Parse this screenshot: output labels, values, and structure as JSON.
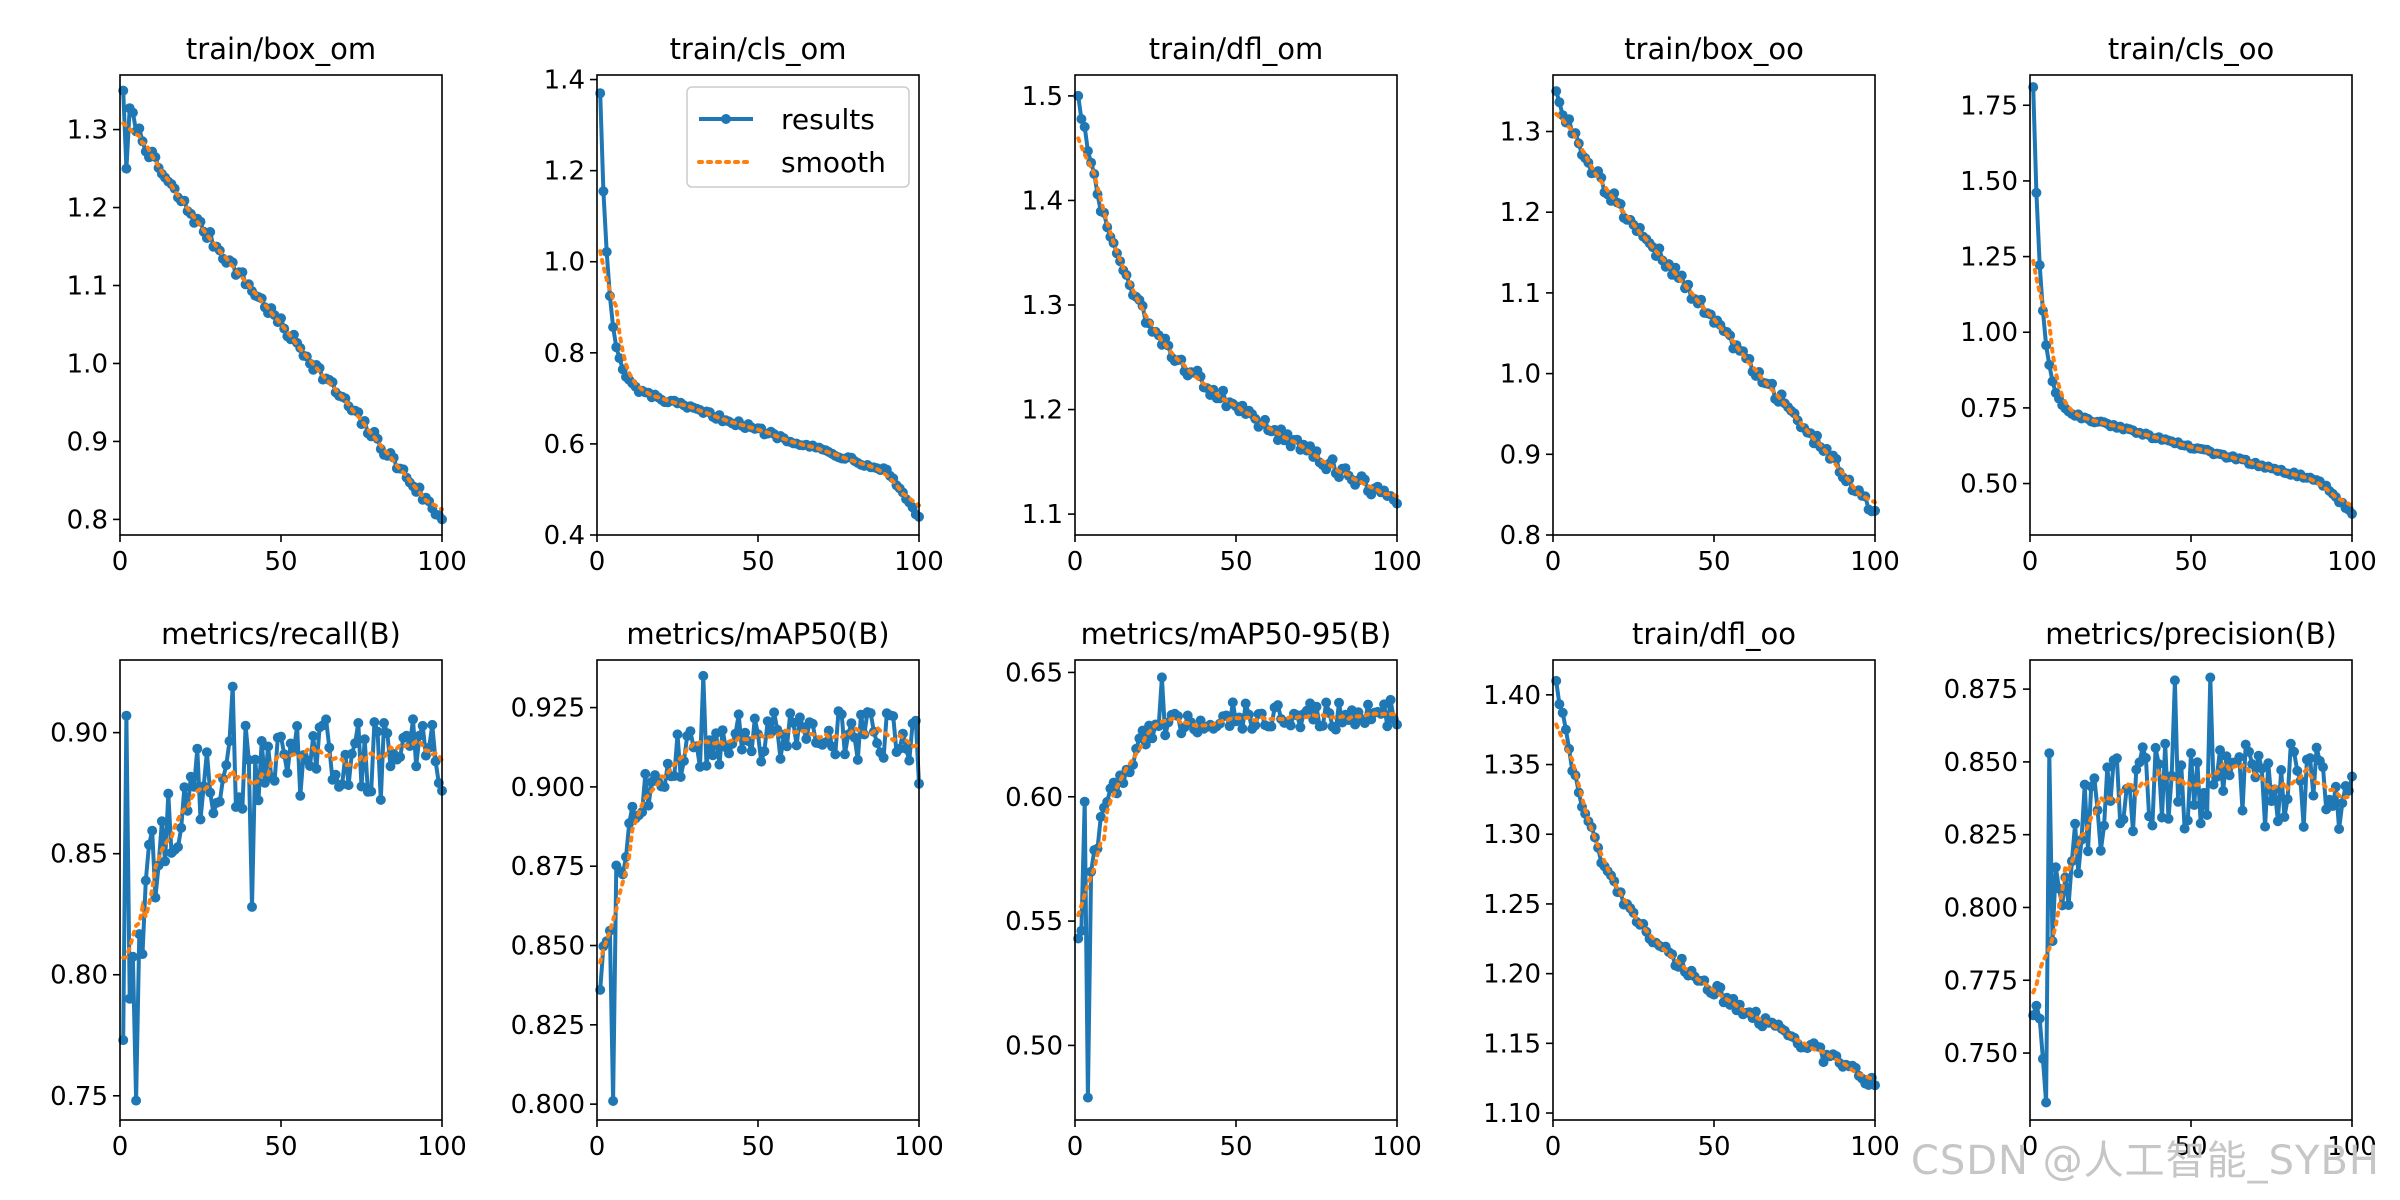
{
  "watermark": "CSDN @人工智能_SYBH",
  "legend": {
    "results": "results",
    "smooth": "smooth"
  },
  "colors": {
    "results": "#1f77b4",
    "smooth": "#ff7f0e",
    "axis": "#000000",
    "background": "#ffffff"
  },
  "chart_data": [
    {
      "type": "line",
      "title": "train/box_om",
      "xlim": [
        0,
        100
      ],
      "ylim": [
        0.78,
        1.37
      ],
      "xticks": [
        0,
        50,
        100
      ],
      "xtick_labels": [
        "0",
        "50",
        "100"
      ],
      "yticks": [
        0.8,
        0.9,
        1.0,
        1.1,
        1.2,
        1.3
      ],
      "ytick_labels": [
        "0.8",
        "0.9",
        "1.0",
        "1.1",
        "1.2",
        "1.3"
      ],
      "x_start": 1,
      "x_end": 100,
      "y_start": 1.35,
      "y_end": 0.8,
      "curve": "linear",
      "noise": 0.008,
      "spikes": [
        [
          2,
          1.25
        ]
      ],
      "legend": false
    },
    {
      "type": "line",
      "title": "train/cls_om",
      "xlim": [
        0,
        100
      ],
      "ylim": [
        0.4,
        1.41
      ],
      "xticks": [
        0,
        50,
        100
      ],
      "xtick_labels": [
        "0",
        "50",
        "100"
      ],
      "yticks": [
        0.4,
        0.6,
        0.8,
        1.0,
        1.2,
        1.4
      ],
      "ytick_labels": [
        "0.4",
        "0.6",
        "0.8",
        "1.0",
        "1.2",
        "1.4"
      ],
      "x_start": 1,
      "x_end": 100,
      "y_start": 1.37,
      "y_end": 0.44,
      "curve": "fastdecay",
      "plateau": 0.74,
      "noise": 0.006,
      "spikes": [],
      "legend": true
    },
    {
      "type": "line",
      "title": "train/dfl_om",
      "xlim": [
        0,
        100
      ],
      "ylim": [
        1.08,
        1.52
      ],
      "xticks": [
        0,
        50,
        100
      ],
      "xtick_labels": [
        "0",
        "50",
        "100"
      ],
      "yticks": [
        1.1,
        1.2,
        1.3,
        1.4,
        1.5
      ],
      "ytick_labels": [
        "1.1",
        "1.2",
        "1.3",
        "1.4",
        "1.5"
      ],
      "x_start": 1,
      "x_end": 100,
      "y_start": 1.5,
      "y_end": 1.11,
      "curve": "decay",
      "noise": 0.007,
      "spikes": [],
      "legend": false
    },
    {
      "type": "line",
      "title": "train/box_oo",
      "xlim": [
        0,
        100
      ],
      "ylim": [
        0.8,
        1.37
      ],
      "xticks": [
        0,
        50,
        100
      ],
      "xtick_labels": [
        "0",
        "50",
        "100"
      ],
      "yticks": [
        0.8,
        0.9,
        1.0,
        1.1,
        1.2,
        1.3
      ],
      "ytick_labels": [
        "0.8",
        "0.9",
        "1.0",
        "1.1",
        "1.2",
        "1.3"
      ],
      "x_start": 1,
      "x_end": 100,
      "y_start": 1.35,
      "y_end": 0.83,
      "curve": "linear",
      "noise": 0.008,
      "spikes": [],
      "legend": false
    },
    {
      "type": "line",
      "title": "train/cls_oo",
      "xlim": [
        0,
        100
      ],
      "ylim": [
        0.33,
        1.85
      ],
      "xticks": [
        0,
        50,
        100
      ],
      "xtick_labels": [
        "0",
        "50",
        "100"
      ],
      "yticks": [
        0.5,
        0.75,
        1.0,
        1.25,
        1.5,
        1.75
      ],
      "ytick_labels": [
        "0.50",
        "0.75",
        "1.00",
        "1.25",
        "1.50",
        "1.75"
      ],
      "x_start": 1,
      "x_end": 100,
      "y_start": 1.81,
      "y_end": 0.4,
      "curve": "fastdecay",
      "plateau": 0.76,
      "noise": 0.006,
      "spikes": [],
      "legend": false
    },
    {
      "type": "line",
      "title": "metrics/recall(B)",
      "xlim": [
        0,
        100
      ],
      "ylim": [
        0.74,
        0.93
      ],
      "xticks": [
        0,
        50,
        100
      ],
      "xtick_labels": [
        "0",
        "50",
        "100"
      ],
      "yticks": [
        0.75,
        0.8,
        0.85,
        0.9
      ],
      "ytick_labels": [
        "0.75",
        "0.80",
        "0.85",
        "0.90"
      ],
      "x_start": 1,
      "x_end": 100,
      "y_start": 0.773,
      "y_end": 0.876,
      "curve": "rise",
      "plateau": 0.888,
      "noise": 0.018,
      "spikes": [
        [
          2,
          0.907
        ],
        [
          5,
          0.748
        ],
        [
          35,
          0.919
        ],
        [
          41,
          0.828
        ]
      ],
      "legend": false
    },
    {
      "type": "line",
      "title": "metrics/mAP50(B)",
      "xlim": [
        0,
        100
      ],
      "ylim": [
        0.795,
        0.94
      ],
      "xticks": [
        0,
        50,
        100
      ],
      "xtick_labels": [
        "0",
        "50",
        "100"
      ],
      "yticks": [
        0.8,
        0.825,
        0.85,
        0.875,
        0.9,
        0.925
      ],
      "ytick_labels": [
        "0.800",
        "0.825",
        "0.850",
        "0.875",
        "0.900",
        "0.925"
      ],
      "x_start": 1,
      "x_end": 100,
      "y_start": 0.836,
      "y_end": 0.901,
      "curve": "rise",
      "plateau": 0.916,
      "noise": 0.008,
      "spikes": [
        [
          5,
          0.801
        ],
        [
          33,
          0.935
        ]
      ],
      "legend": false
    },
    {
      "type": "line",
      "title": "metrics/mAP50-95(B)",
      "xlim": [
        0,
        100
      ],
      "ylim": [
        0.47,
        0.655
      ],
      "xticks": [
        0,
        50,
        100
      ],
      "xtick_labels": [
        "0",
        "50",
        "100"
      ],
      "yticks": [
        0.5,
        0.55,
        0.6,
        0.65
      ],
      "ytick_labels": [
        "0.50",
        "0.55",
        "0.60",
        "0.65"
      ],
      "x_start": 1,
      "x_end": 100,
      "y_start": 0.543,
      "y_end": 0.629,
      "curve": "rise",
      "plateau": 0.633,
      "noise": 0.006,
      "spikes": [
        [
          3,
          0.598
        ],
        [
          4,
          0.479
        ],
        [
          27,
          0.648
        ]
      ],
      "legend": false
    },
    {
      "type": "line",
      "title": "train/dfl_oo",
      "xlim": [
        0,
        100
      ],
      "ylim": [
        1.095,
        1.425
      ],
      "xticks": [
        0,
        50,
        100
      ],
      "xtick_labels": [
        "0",
        "50",
        "100"
      ],
      "yticks": [
        1.1,
        1.15,
        1.2,
        1.25,
        1.3,
        1.35,
        1.4
      ],
      "ytick_labels": [
        "1.10",
        "1.15",
        "1.20",
        "1.25",
        "1.30",
        "1.35",
        "1.40"
      ],
      "x_start": 1,
      "x_end": 100,
      "y_start": 1.41,
      "y_end": 1.12,
      "curve": "decay",
      "noise": 0.005,
      "spikes": [],
      "legend": false
    },
    {
      "type": "line",
      "title": "metrics/precision(B)",
      "xlim": [
        0,
        100
      ],
      "ylim": [
        0.727,
        0.885
      ],
      "xticks": [
        0,
        50,
        100
      ],
      "xtick_labels": [
        "0",
        "50",
        "100"
      ],
      "yticks": [
        0.75,
        0.775,
        0.8,
        0.825,
        0.85,
        0.875
      ],
      "ytick_labels": [
        "0.750",
        "0.775",
        "0.800",
        "0.825",
        "0.850",
        "0.875"
      ],
      "x_start": 1,
      "x_end": 100,
      "y_start": 0.763,
      "y_end": 0.845,
      "curve": "rise",
      "plateau": 0.842,
      "noise": 0.016,
      "spikes": [
        [
          4,
          0.748
        ],
        [
          5,
          0.733
        ],
        [
          6,
          0.853
        ],
        [
          45,
          0.878
        ],
        [
          56,
          0.879
        ]
      ],
      "legend": false
    }
  ]
}
